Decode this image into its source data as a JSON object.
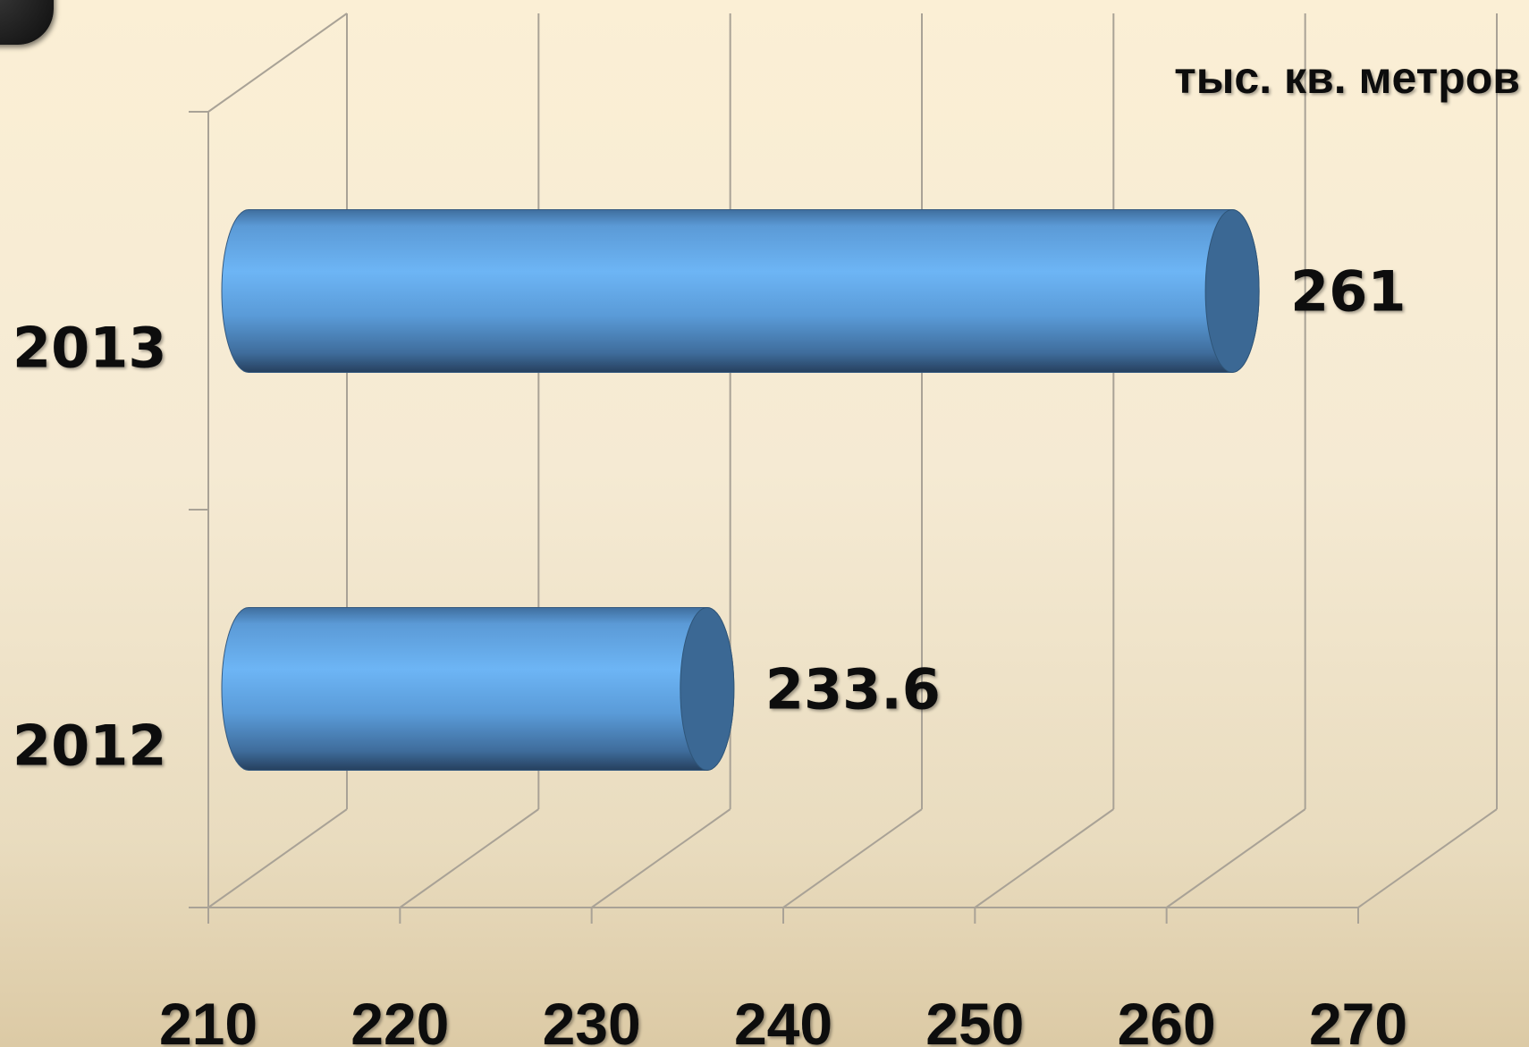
{
  "chart_data": {
    "type": "bar",
    "orientation": "horizontal",
    "style": "3d-cylinder",
    "unit_label": "тыс. кв. метров",
    "categories": [
      "2012",
      "2013"
    ],
    "values": [
      233.6,
      261
    ],
    "value_labels": [
      "233.6",
      "261"
    ],
    "x_ticks": [
      "210",
      "220",
      "230",
      "240",
      "250",
      "260",
      "270"
    ],
    "xlim": [
      210,
      270
    ],
    "grid": true,
    "bar_color": "#5ea6e6",
    "bar_cap_color": "#3b6894"
  }
}
